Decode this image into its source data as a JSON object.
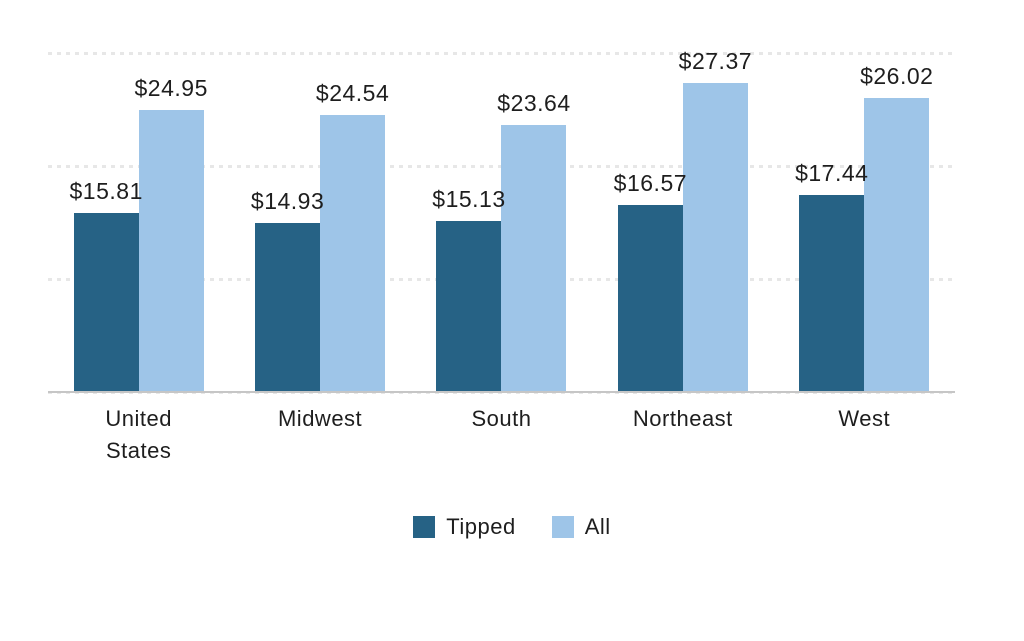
{
  "page": {
    "background_color": "#ffffff",
    "text_color": "#1e1e1e"
  },
  "chart_data": {
    "type": "bar",
    "title": "",
    "xlabel": "",
    "ylabel": "",
    "categories": [
      "United States",
      "Midwest",
      "South",
      "Northeast",
      "West"
    ],
    "series": [
      {
        "name": "Tipped",
        "color": "#266285",
        "values": [
          15.81,
          14.93,
          15.13,
          16.57,
          17.44
        ],
        "labels": [
          "$15.81",
          "$14.93",
          "$15.13",
          "$16.57",
          "$17.44"
        ]
      },
      {
        "name": "All",
        "color": "#9EC5E8",
        "values": [
          24.95,
          24.54,
          23.64,
          27.37,
          26.02
        ],
        "labels": [
          "$24.95",
          "$24.54",
          "$23.64",
          "$27.37",
          "$26.02"
        ]
      }
    ],
    "ylim": [
      0,
      30
    ],
    "gridlines": [
      0,
      10,
      20,
      30
    ],
    "grid_style": "dotted",
    "gridline_color": "#e7e7e7",
    "axis_color": "#c6c6c6",
    "legend_position": "bottom",
    "value_labels_shown": true,
    "y_axis_tick_labels_shown": false
  }
}
